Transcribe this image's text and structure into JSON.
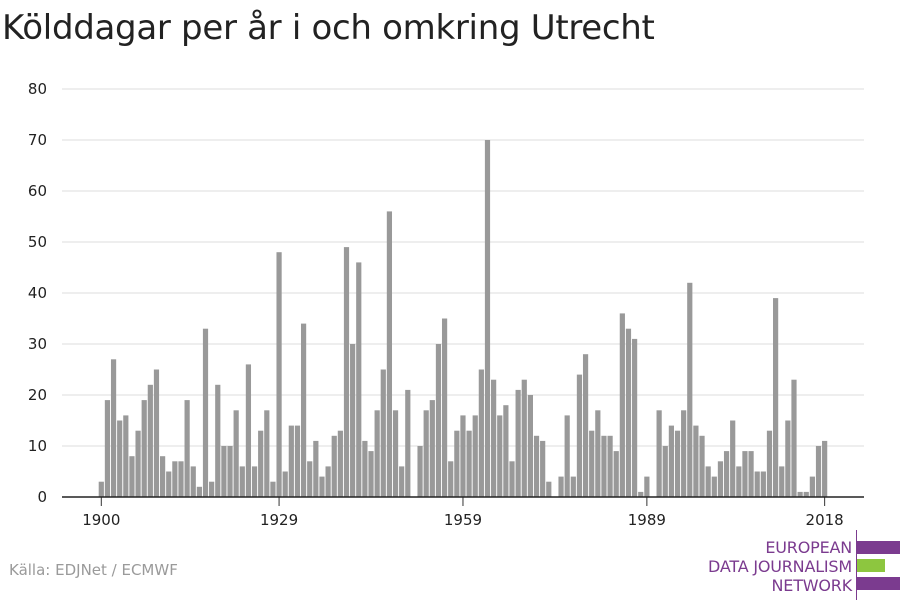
{
  "chart_data": {
    "type": "bar",
    "title": "Kölddagar per år i och omkring Utrecht",
    "xlabel": "",
    "ylabel": "",
    "ylim": [
      0,
      80
    ],
    "yticks": [
      0,
      10,
      20,
      30,
      40,
      50,
      60,
      70,
      80
    ],
    "xticks": [
      1900,
      1929,
      1959,
      1989,
      2018
    ],
    "grid": true,
    "color": "#999999",
    "x": [
      1900,
      1901,
      1902,
      1903,
      1904,
      1905,
      1906,
      1907,
      1908,
      1909,
      1910,
      1911,
      1912,
      1913,
      1914,
      1915,
      1916,
      1917,
      1918,
      1919,
      1920,
      1921,
      1922,
      1923,
      1924,
      1925,
      1926,
      1927,
      1928,
      1929,
      1930,
      1931,
      1932,
      1933,
      1934,
      1935,
      1936,
      1937,
      1938,
      1939,
      1940,
      1941,
      1942,
      1943,
      1944,
      1945,
      1946,
      1947,
      1948,
      1949,
      1950,
      1951,
      1952,
      1953,
      1954,
      1955,
      1956,
      1957,
      1958,
      1959,
      1960,
      1961,
      1962,
      1963,
      1964,
      1965,
      1966,
      1967,
      1968,
      1969,
      1970,
      1971,
      1972,
      1973,
      1974,
      1975,
      1976,
      1977,
      1978,
      1979,
      1980,
      1981,
      1982,
      1983,
      1984,
      1985,
      1986,
      1987,
      1988,
      1989,
      1990,
      1991,
      1992,
      1993,
      1994,
      1995,
      1996,
      1997,
      1998,
      1999,
      2000,
      2001,
      2002,
      2003,
      2004,
      2005,
      2006,
      2007,
      2008,
      2009,
      2010,
      2011,
      2012,
      2013,
      2014,
      2015,
      2016,
      2017,
      2018
    ],
    "values": [
      3,
      19,
      27,
      15,
      16,
      8,
      13,
      19,
      22,
      25,
      8,
      5,
      7,
      7,
      19,
      6,
      2,
      33,
      3,
      22,
      10,
      10,
      17,
      6,
      26,
      6,
      13,
      17,
      3,
      48,
      5,
      14,
      14,
      34,
      7,
      11,
      4,
      6,
      12,
      13,
      49,
      30,
      46,
      11,
      9,
      17,
      25,
      56,
      17,
      6,
      21,
      0,
      10,
      17,
      19,
      30,
      35,
      7,
      13,
      16,
      13,
      16,
      25,
      70,
      23,
      16,
      18,
      7,
      21,
      23,
      20,
      12,
      11,
      3,
      0,
      4,
      16,
      4,
      24,
      28,
      13,
      17,
      12,
      12,
      9,
      36,
      33,
      31,
      1,
      4,
      0,
      17,
      10,
      14,
      13,
      17,
      42,
      14,
      12,
      6,
      4,
      7,
      9,
      15,
      6,
      9,
      9,
      5,
      5,
      13,
      39,
      6,
      15,
      23,
      1,
      1,
      4,
      10,
      11
    ],
    "source": "Källa: EDJNet / ECMWF"
  },
  "logo": {
    "lines": [
      "EUROPEAN",
      "DATA JOURNALISM",
      "NETWORK"
    ],
    "colors": [
      "#7b3b8f",
      "#8dc63f",
      "#7b3b8f"
    ]
  }
}
